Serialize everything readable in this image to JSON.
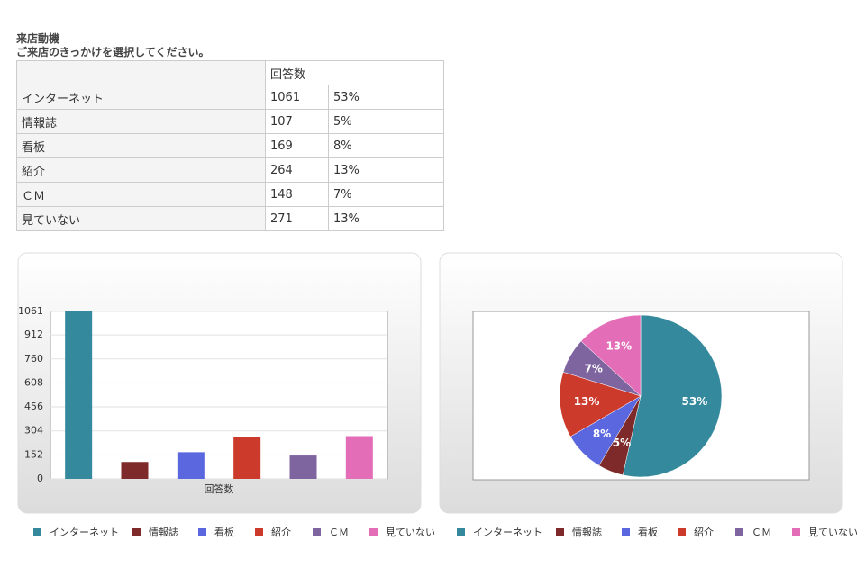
{
  "heading": {
    "title": "来店動機",
    "question": "ご来店のきっかけを選択してください。"
  },
  "table": {
    "header": "回答数",
    "rows": [
      [
        "インターネット",
        1061,
        "53%"
      ],
      [
        "情報誌",
        107,
        "5%"
      ],
      [
        "看板",
        169,
        "8%"
      ],
      [
        "紹介",
        264,
        "13%"
      ],
      [
        "ＣＭ",
        148,
        "7%"
      ],
      [
        "見ていない",
        271,
        "13%"
      ]
    ]
  },
  "chart_data": [
    {
      "type": "bar",
      "x_label": "回答数",
      "categories": [
        "インターネット",
        "情報誌",
        "看板",
        "紹介",
        "ＣＭ",
        "見ていない"
      ],
      "values": [
        1061,
        107,
        169,
        264,
        148,
        271
      ],
      "colors": [
        "#348a9c",
        "#7f2a2a",
        "#5b67df",
        "#cc3a2c",
        "#7f65a0",
        "#e46db8"
      ],
      "ylim": [
        0,
        1061
      ],
      "yticks": [
        0,
        152,
        304,
        456,
        608,
        760,
        912,
        1061
      ],
      "grid": true,
      "legend": "bottom"
    },
    {
      "type": "pie",
      "categories": [
        "インターネット",
        "情報誌",
        "看板",
        "紹介",
        "ＣＭ",
        "見ていない"
      ],
      "values": [
        53,
        5,
        8,
        13,
        7,
        13
      ],
      "value_labels": [
        "53%",
        "5%",
        "8%",
        "13%",
        "7%",
        "13%"
      ],
      "colors": [
        "#348a9c",
        "#7f2a2a",
        "#5b67df",
        "#cc3a2c",
        "#7f65a0",
        "#e46db8"
      ],
      "legend": "bottom"
    }
  ]
}
